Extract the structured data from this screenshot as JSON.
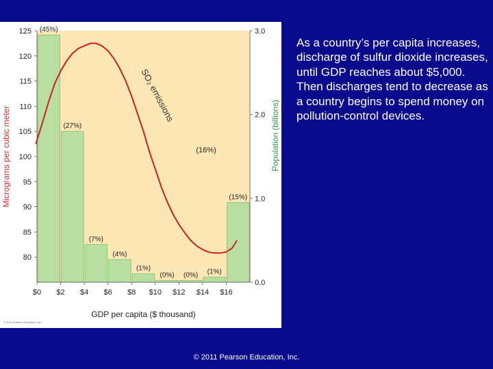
{
  "caption": "As a country’s per capita increases, discharge of sulfur dioxide increases, until GDP reaches about $5,000. Then discharges tend to decrease as a country begins to spend money on pollution-control devices.",
  "copyright": "© 2011 Pearson Education, Inc.",
  "figure_copyright": "© 2011 Pearson Education, Inc.",
  "colors": {
    "background": "#0a0a8c",
    "plot_bg": "#fbe6b4",
    "bar_fill": "#b8dea2",
    "bar_stroke": "#7cc06a",
    "curve": "#cc1f1f",
    "left_axis_label": "#d23030",
    "right_axis_label": "#2e9b46"
  },
  "chart_data": {
    "type": "bar",
    "xlabel": "GDP per capita ($ thousand)",
    "ylabel": "Micrograms per cubic meter",
    "y2label": "Population (billions)",
    "xlim": [
      0,
      18
    ],
    "ylim": [
      75,
      125
    ],
    "y2lim": [
      0,
      3.0
    ],
    "x_ticks": [
      "$0",
      "$2",
      "$4",
      "$6",
      "$8",
      "$10",
      "$12",
      "$14",
      "$16"
    ],
    "y_ticks": [
      80,
      85,
      90,
      95,
      100,
      105,
      110,
      115,
      120,
      125
    ],
    "y2_ticks": [
      "0.0",
      "1.0",
      "2.0",
      "3.0"
    ],
    "bars": {
      "axis": "right",
      "x_start": [
        0,
        2,
        4,
        6,
        8,
        10,
        12,
        14,
        16
      ],
      "width": 2,
      "population": [
        2.95,
        1.8,
        0.45,
        0.27,
        0.1,
        0.02,
        0.02,
        0.06,
        0.95
      ],
      "labels": [
        "(45%)",
        "(27%)",
        "(7%)",
        "(4%)",
        "(1%)",
        "(0%)",
        "(0%)",
        "(1%)",
        "(15%)"
      ]
    },
    "curve": {
      "name": "SO₂ emissions",
      "axis": "left",
      "x": [
        -0.1,
        0.5,
        1.0,
        1.5,
        2.0,
        2.5,
        3.0,
        3.5,
        4.0,
        4.5,
        5.0,
        5.5,
        6.0,
        6.5,
        7.0,
        7.5,
        8.0,
        8.5,
        9.0,
        9.5,
        10.0,
        10.5,
        11.0,
        11.5,
        12.0,
        12.5,
        13.0,
        13.5,
        14.0,
        14.5,
        15.0,
        15.5,
        16.0,
        16.5,
        16.9
      ],
      "y": [
        102.5,
        107,
        111,
        114.5,
        117,
        119,
        120.5,
        121.5,
        122,
        122.5,
        122.5,
        122,
        121,
        119.5,
        117.5,
        115,
        112,
        108.5,
        105,
        101,
        97.5,
        94,
        91,
        88.5,
        86.5,
        84.8,
        83.3,
        82.2,
        81.5,
        81,
        80.8,
        80.8,
        81,
        81.8,
        83.3
      ]
    },
    "annotations": [
      {
        "text": "(16%)",
        "x": 14.3,
        "y": 100.8
      }
    ]
  }
}
